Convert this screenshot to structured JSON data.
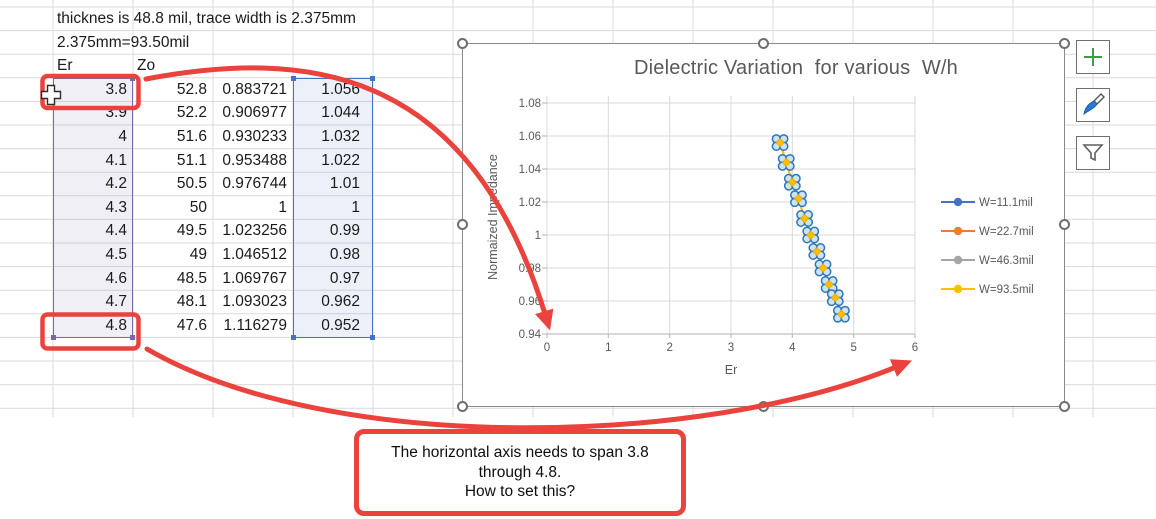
{
  "spreadsheet": {
    "notes": [
      "thicknes is 48.8 mil, trace width is 2.375mm",
      "2.375mm=93.50mil"
    ],
    "headers": [
      "Er",
      "Zo"
    ],
    "rows": [
      [
        "3.8",
        "52.8",
        "0.883721",
        "1.056"
      ],
      [
        "3.9",
        "52.2",
        "0.906977",
        "1.044"
      ],
      [
        "4",
        "51.6",
        "0.930233",
        "1.032"
      ],
      [
        "4.1",
        "51.1",
        "0.953488",
        "1.022"
      ],
      [
        "4.2",
        "50.5",
        "0.976744",
        "1.01"
      ],
      [
        "4.3",
        "50",
        "1",
        "1"
      ],
      [
        "4.4",
        "49.5",
        "1.023256",
        "0.99"
      ],
      [
        "4.5",
        "49",
        "1.046512",
        "0.98"
      ],
      [
        "4.6",
        "48.5",
        "1.069767",
        "0.97"
      ],
      [
        "4.7",
        "48.1",
        "1.093023",
        "0.962"
      ],
      [
        "4.8",
        "47.6",
        "1.116279",
        "0.952"
      ]
    ]
  },
  "chart_data": {
    "type": "scatter",
    "title": "Dielectric Variation  for various  W/h",
    "xlabel": "Er",
    "ylabel": "Normaized Impedance",
    "xlim": [
      0,
      6
    ],
    "ylim": [
      0.94,
      1.08
    ],
    "xticks": [
      0,
      1,
      2,
      3,
      4,
      5,
      6
    ],
    "yticks": [
      0.94,
      0.96,
      0.98,
      1,
      1.02,
      1.04,
      1.06,
      1.08
    ],
    "x": [
      3.8,
      3.9,
      4,
      4.1,
      4.2,
      4.3,
      4.4,
      4.5,
      4.6,
      4.7,
      4.8
    ],
    "series": [
      {
        "name": "W=11.1mil",
        "color": "#4472c4",
        "values": [
          1.056,
          1.044,
          1.032,
          1.022,
          1.01,
          1,
          0.99,
          0.98,
          0.97,
          0.962,
          0.952
        ]
      },
      {
        "name": "W=22.7mil",
        "color": "#ed7d31",
        "values": [
          1.056,
          1.044,
          1.032,
          1.022,
          1.01,
          1,
          0.99,
          0.98,
          0.97,
          0.962,
          0.952
        ]
      },
      {
        "name": "W=46.3mil",
        "color": "#a5a5a5",
        "values": [
          1.056,
          1.044,
          1.032,
          1.022,
          1.01,
          1,
          0.99,
          0.98,
          0.97,
          0.962,
          0.952
        ]
      },
      {
        "name": "W=93.5mil",
        "color": "#ffc000",
        "values": [
          1.056,
          1.044,
          1.032,
          1.022,
          1.01,
          1,
          0.99,
          0.98,
          0.97,
          0.962,
          0.952
        ]
      }
    ],
    "series_overlap": true,
    "grid": true,
    "legend_position": "right",
    "marker": {
      "ring_color": "#2e75b6",
      "fill_color": "#cde3f3",
      "center_color": "#ffc000"
    }
  },
  "callout": {
    "line1": "The horizontal axis needs to span 3.8",
    "line2": "through 4.8.",
    "line3": "How to set this?"
  },
  "chart_tools": {
    "add": "chart-elements-plus",
    "style": "chart-styles-brush",
    "filter": "chart-filters-funnel"
  },
  "colors": {
    "annotation_red": "#ea423d",
    "selection_purple": "#7a67ad",
    "selection_blue": "#4472c4",
    "chart_text": "#595959",
    "gridline": "#d9d9d9"
  }
}
